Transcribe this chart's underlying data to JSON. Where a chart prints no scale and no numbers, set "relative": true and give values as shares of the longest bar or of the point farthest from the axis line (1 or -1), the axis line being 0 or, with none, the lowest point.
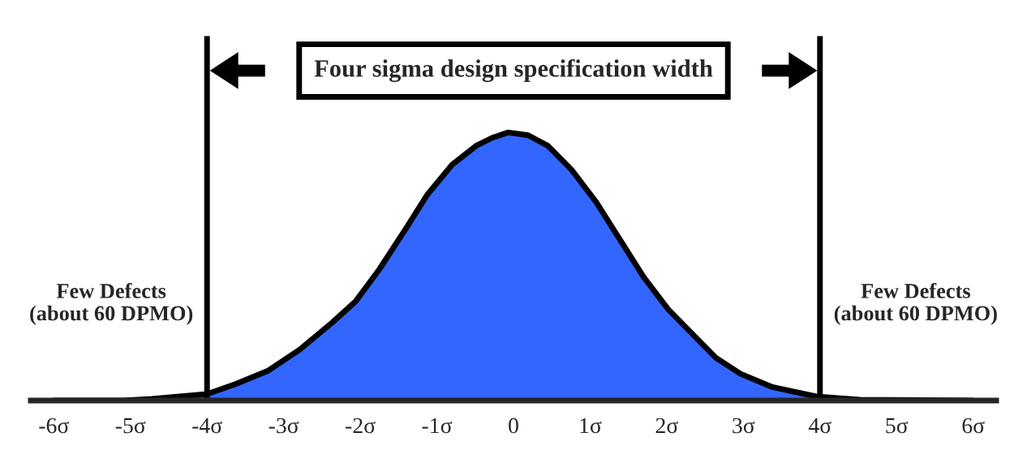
{
  "chart_data": {
    "type": "area",
    "title": "Four sigma design specification width",
    "relative": true,
    "x": [
      -6.0,
      -5.09,
      -4.72,
      -4.0,
      -3.63,
      -3.21,
      -2.79,
      -2.37,
      -2.06,
      -1.75,
      -1.43,
      -1.12,
      -0.8,
      -0.49,
      -0.28,
      -0.07,
      0.19,
      0.45,
      0.76,
      1.08,
      1.39,
      1.7,
      2.02,
      2.33,
      2.64,
      2.96,
      3.38,
      3.95,
      4.52,
      5.99
    ],
    "series": [
      {
        "color": "#3366ff",
        "values": [
          0,
          0,
          0.006,
          0.024,
          0.061,
          0.11,
          0.19,
          0.29,
          0.37,
          0.49,
          0.63,
          0.77,
          0.88,
          0.95,
          0.98,
          1.0,
          0.99,
          0.95,
          0.86,
          0.74,
          0.6,
          0.46,
          0.34,
          0.25,
          0.16,
          0.1,
          0.05,
          0.015,
          0.003,
          0
        ]
      }
    ],
    "xlim": [
      -6.3,
      6.3
    ],
    "xticks": [
      {
        "value": -6,
        "label": "-6σ"
      },
      {
        "value": -5,
        "label": "-5σ"
      },
      {
        "value": -4,
        "label": "-4σ"
      },
      {
        "value": -3,
        "label": "-3σ"
      },
      {
        "value": -2,
        "label": "-2σ"
      },
      {
        "value": -1,
        "label": "-1σ"
      },
      0,
      {
        "value": 1,
        "label": "1σ"
      },
      {
        "value": 2,
        "label": "2σ"
      },
      {
        "value": 3,
        "label": "3σ"
      },
      {
        "value": 4,
        "label": "4σ"
      },
      {
        "value": 5,
        "label": "5σ"
      },
      {
        "value": 6,
        "label": "6σ"
      }
    ],
    "ref_lines": [
      {
        "axis": "x",
        "value": -4,
        "color": "#000000"
      },
      {
        "axis": "x",
        "value": 4,
        "color": "#000000"
      }
    ],
    "annotations": [
      "Few Defects\n(about 60 DPMO)",
      "Few Defects\n(about 60 DPMO)"
    ],
    "tick_labels": "x",
    "grid": false
  }
}
